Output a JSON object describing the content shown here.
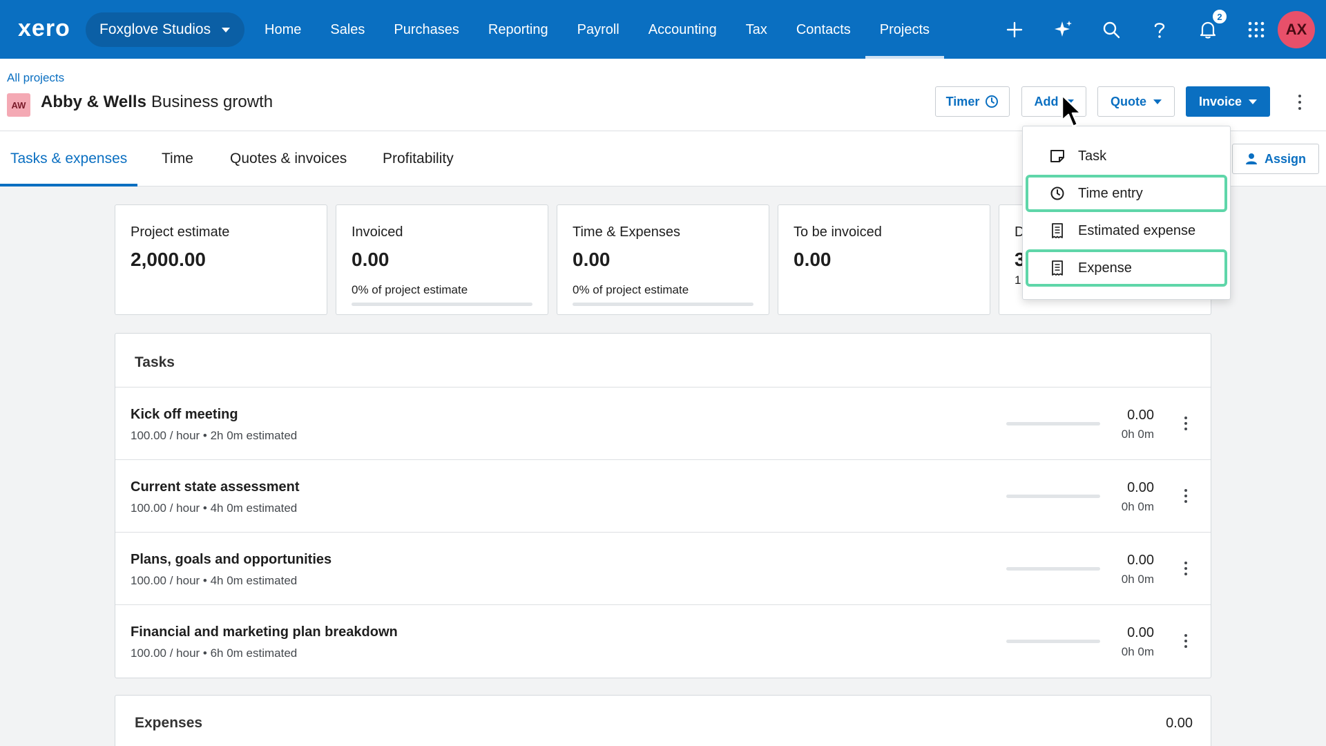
{
  "app": {
    "logo": "xero",
    "org_name": "Foxglove Studios",
    "nav": [
      "Home",
      "Sales",
      "Purchases",
      "Reporting",
      "Payroll",
      "Accounting",
      "Tax",
      "Contacts",
      "Projects"
    ],
    "active_nav": "Projects",
    "notifications_count": "2",
    "user_initials": "AX"
  },
  "header": {
    "breadcrumb": "All projects",
    "project_initials": "AW",
    "client_name": "Abby & Wells",
    "project_name": "Business growth",
    "timer_label": "Timer",
    "add_label": "Add",
    "quote_label": "Quote",
    "invoice_label": "Invoice"
  },
  "tabs": [
    "Tasks & expenses",
    "Time",
    "Quotes & invoices",
    "Profitability"
  ],
  "active_tab": "Tasks & expenses",
  "assign_label": "Assign",
  "cards": [
    {
      "label": "Project estimate",
      "value": "2,000.00"
    },
    {
      "label": "Invoiced",
      "value": "0.00",
      "sub": "0% of project estimate",
      "progress": 0
    },
    {
      "label": "Time & Expenses",
      "value": "0.00",
      "sub": "0% of project estimate",
      "progress": 0
    },
    {
      "label": "To be invoiced",
      "value": "0.00"
    },
    {
      "label": "D",
      "value": "3",
      "sub": "1"
    }
  ],
  "tasks_panel": {
    "title": "Tasks",
    "rows": [
      {
        "name": "Kick off meeting",
        "meta": "100.00 / hour • 2h 0m estimated",
        "amount": "0.00",
        "hours": "0h 0m",
        "progress": 0
      },
      {
        "name": "Current state assessment",
        "meta": "100.00 / hour • 4h 0m estimated",
        "amount": "0.00",
        "hours": "0h 0m",
        "progress": 0
      },
      {
        "name": "Plans, goals and opportunities",
        "meta": "100.00 / hour • 4h 0m estimated",
        "amount": "0.00",
        "hours": "0h 0m",
        "progress": 0
      },
      {
        "name": "Financial and marketing plan breakdown",
        "meta": "100.00 / hour • 6h 0m estimated",
        "amount": "0.00",
        "hours": "0h 0m",
        "progress": 0
      }
    ]
  },
  "expenses_panel": {
    "title": "Expenses",
    "total": "0.00"
  },
  "add_menu": {
    "items": [
      {
        "label": "Task",
        "icon": "task-icon",
        "highlighted": false
      },
      {
        "label": "Time entry",
        "icon": "clock-icon",
        "highlighted": true
      },
      {
        "label": "Estimated expense",
        "icon": "receipt-icon",
        "highlighted": false
      },
      {
        "label": "Expense",
        "icon": "receipt-icon",
        "highlighted": true
      }
    ]
  },
  "colors": {
    "brand_blue": "#0a6fc1",
    "highlight_green": "#5fd6a9",
    "avatar_pink": "#e8506a"
  }
}
